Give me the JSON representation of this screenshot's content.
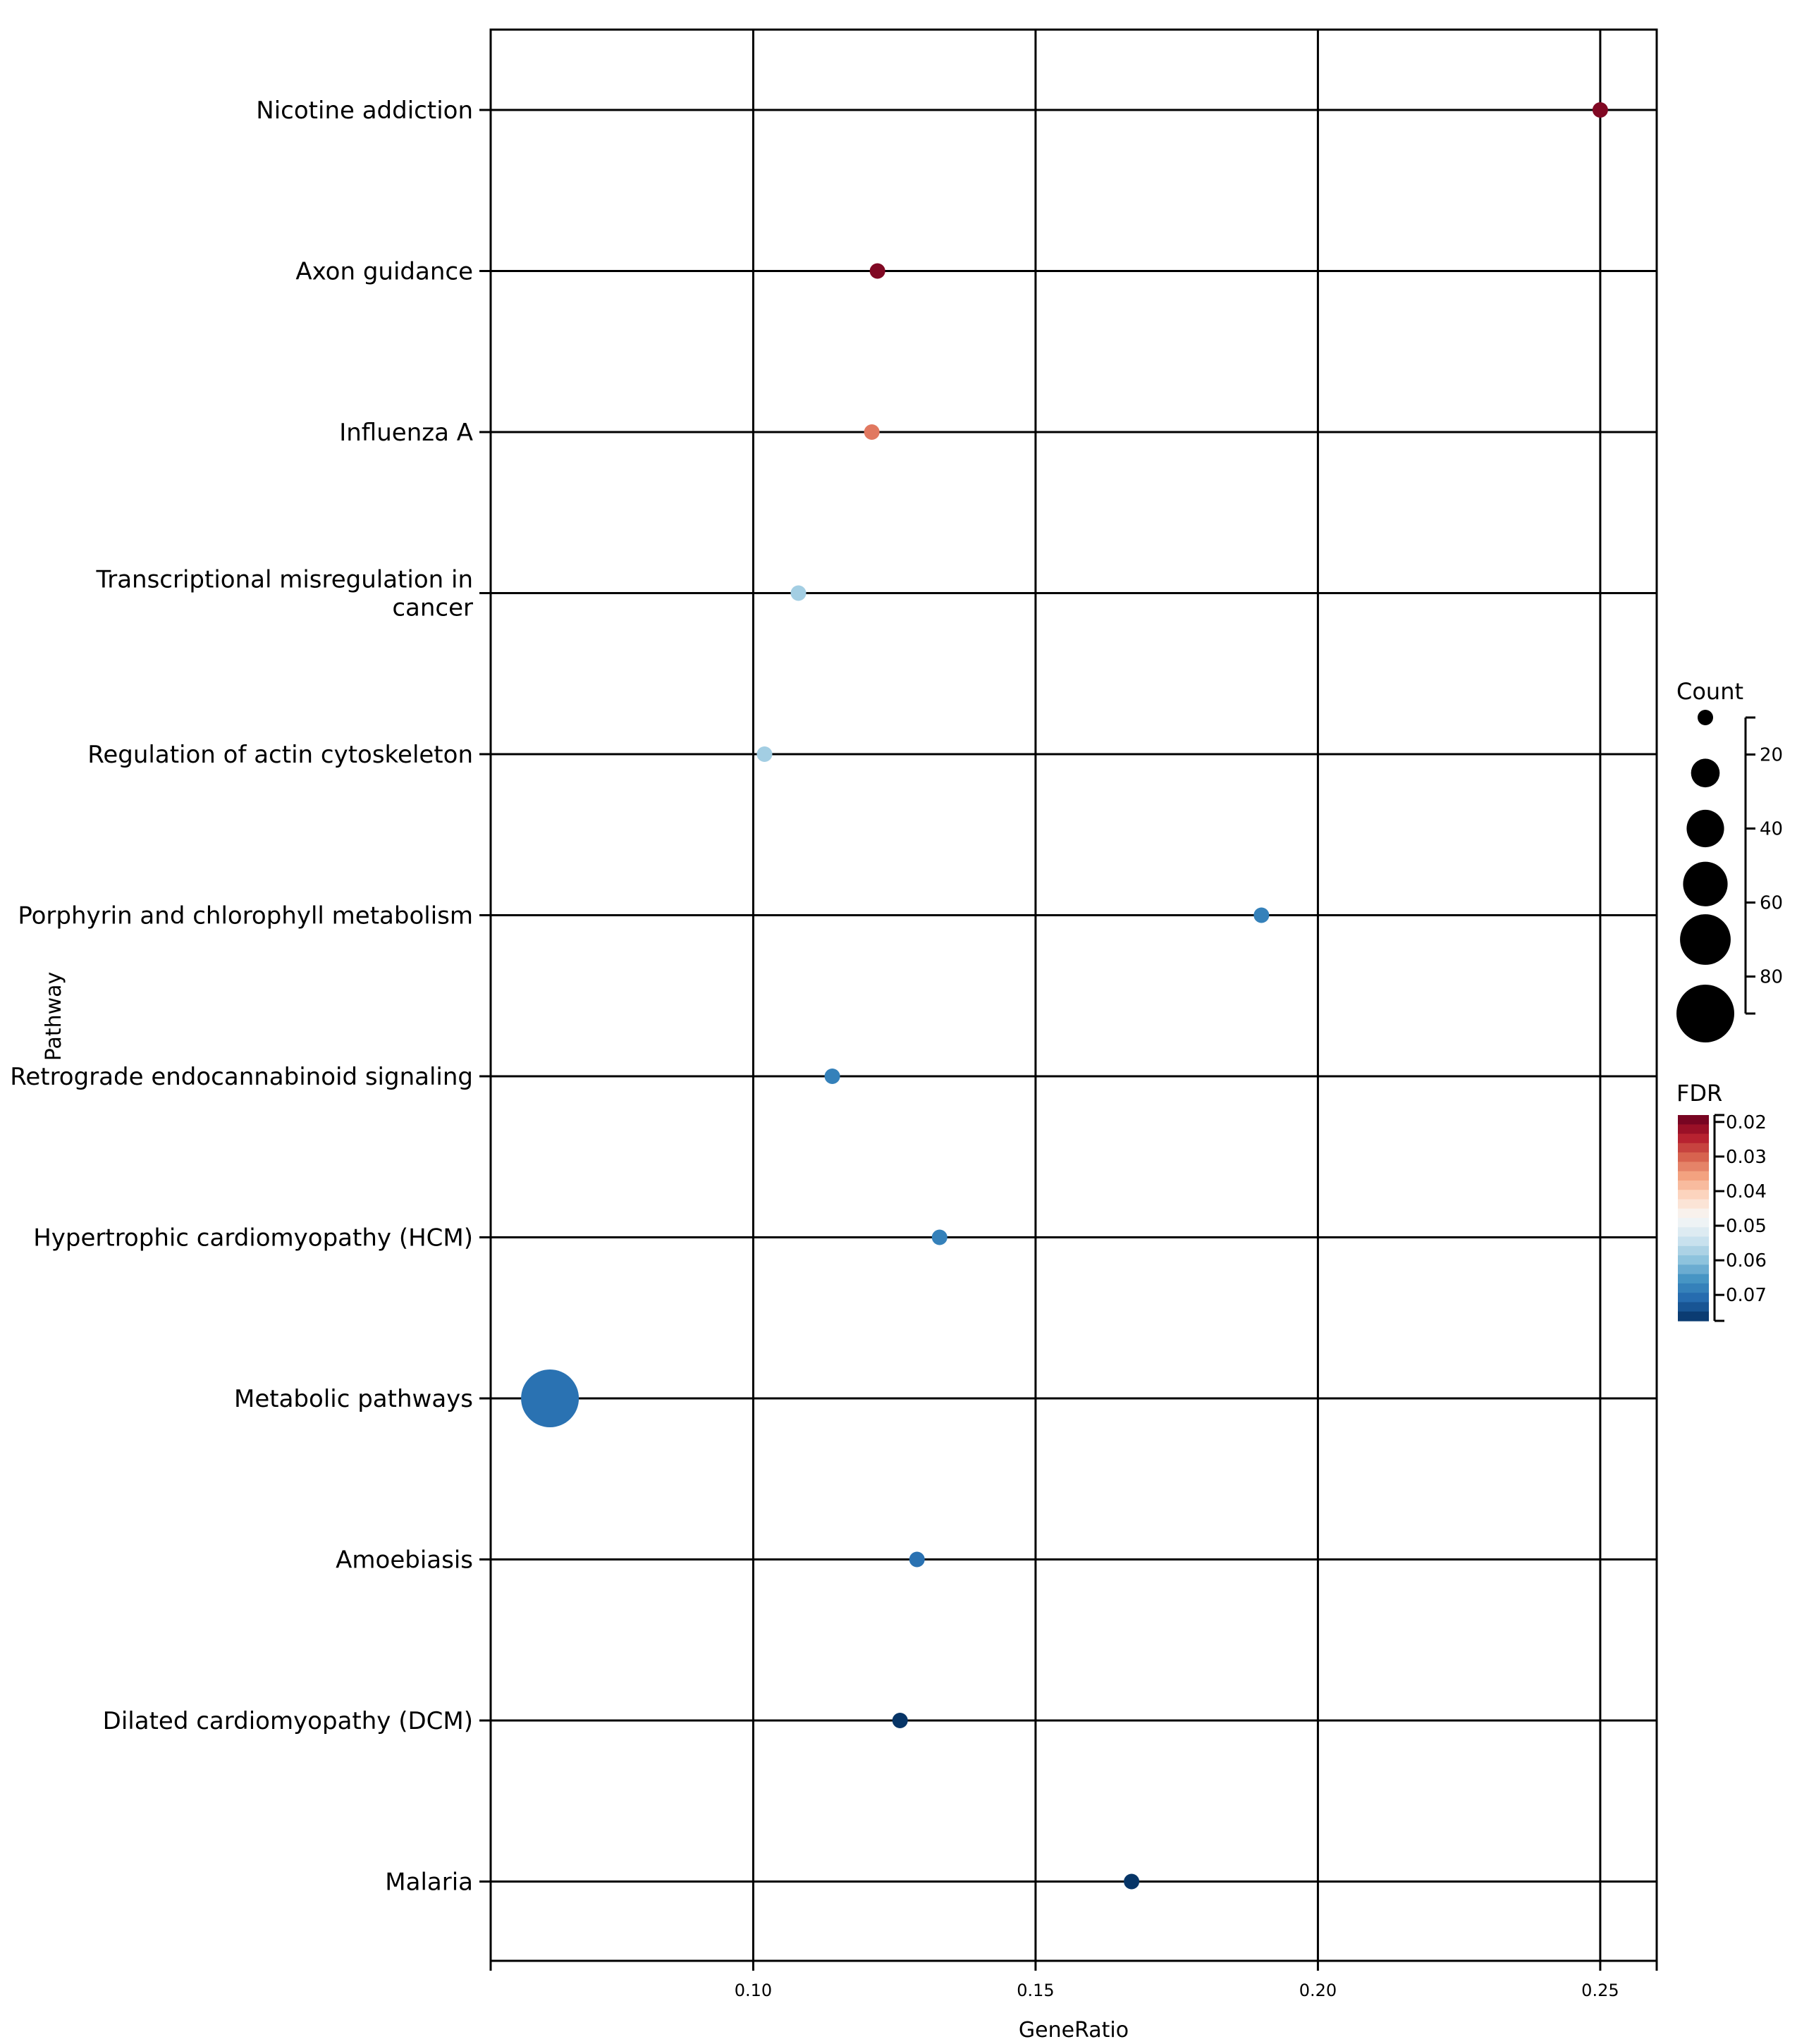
{
  "chart_data": {
    "type": "scatter",
    "xlabel": "GeneRatio",
    "ylabel": "Pathway",
    "xlim": [
      0.0535,
      0.26
    ],
    "xticks": [
      0.1,
      0.15,
      0.2,
      0.25
    ],
    "xtick_labels": [
      "0.10",
      "0.15",
      "0.20",
      "0.25"
    ],
    "grid": true,
    "points": [
      {
        "pathway": "Nicotine addiction",
        "label_lines": [
          "Nicotine addiction"
        ],
        "gene_ratio": 0.25,
        "count": 2,
        "fdr": 0.02
      },
      {
        "pathway": "Axon guidance",
        "label_lines": [
          "Axon guidance"
        ],
        "gene_ratio": 0.122,
        "count": 5,
        "fdr": 0.02
      },
      {
        "pathway": "Influenza A",
        "label_lines": [
          "Influenza A"
        ],
        "gene_ratio": 0.121,
        "count": 4,
        "fdr": 0.032
      },
      {
        "pathway": "Transcriptional misregulation in cancer",
        "label_lines": [
          "Transcriptional misregulation in",
          "cancer"
        ],
        "gene_ratio": 0.108,
        "count": 4,
        "fdr": 0.058
      },
      {
        "pathway": "Regulation of actin cytoskeleton",
        "label_lines": [
          "Regulation of actin cytoskeleton"
        ],
        "gene_ratio": 0.102,
        "count": 5,
        "fdr": 0.058
      },
      {
        "pathway": "Porphyrin and chlorophyll metabolism",
        "label_lines": [
          "Porphyrin and chlorophyll metabolism"
        ],
        "gene_ratio": 0.19,
        "count": 2,
        "fdr": 0.068
      },
      {
        "pathway": "Retrograde endocannabinoid signaling",
        "label_lines": [
          "Retrograde endocannabinoid signaling"
        ],
        "gene_ratio": 0.114,
        "count": 4,
        "fdr": 0.068
      },
      {
        "pathway": "Hypertrophic cardiomyopathy (HCM)",
        "label_lines": [
          "Hypertrophic cardiomyopathy (HCM)"
        ],
        "gene_ratio": 0.133,
        "count": 3,
        "fdr": 0.068
      },
      {
        "pathway": "Metabolic pathways",
        "label_lines": [
          "Metabolic pathways"
        ],
        "gene_ratio": 0.064,
        "count": 90,
        "fdr": 0.07
      },
      {
        "pathway": "Amoebiasis",
        "label_lines": [
          "Amoebiasis"
        ],
        "gene_ratio": 0.129,
        "count": 3,
        "fdr": 0.07
      },
      {
        "pathway": "Dilated cardiomyopathy (DCM)",
        "label_lines": [
          "Dilated cardiomyopathy (DCM)"
        ],
        "gene_ratio": 0.126,
        "count": 3,
        "fdr": 0.077
      },
      {
        "pathway": "Malaria",
        "label_lines": [
          "Malaria"
        ],
        "gene_ratio": 0.167,
        "count": 2,
        "fdr": 0.077
      }
    ],
    "size_legend": {
      "title": "Count",
      "range": [
        10,
        90
      ],
      "ticks": [
        20,
        40,
        60,
        80
      ],
      "circle_counts": [
        10,
        25,
        40,
        55,
        70,
        90
      ]
    },
    "color_legend": {
      "title": "FDR",
      "range": [
        0.018,
        0.0775
      ],
      "ticks": [
        0.02,
        0.03,
        0.04,
        0.05,
        0.06,
        0.07
      ],
      "tick_labels": [
        "0.02",
        "0.03",
        "0.04",
        "0.05",
        "0.06",
        "0.07"
      ],
      "colormap": [
        "#053061",
        "#2166ac",
        "#4393c3",
        "#92c5de",
        "#d1e5f0",
        "#f7f7f7",
        "#fddbc7",
        "#f4a582",
        "#d6604d",
        "#b2182b",
        "#67001f"
      ]
    }
  }
}
